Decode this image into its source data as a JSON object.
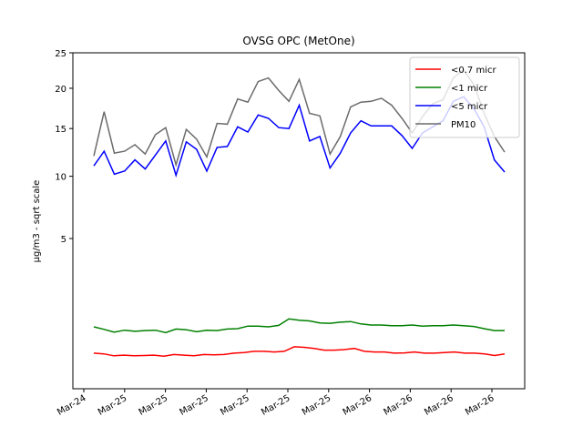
{
  "chart_data": {
    "type": "line",
    "title": "OVSG OPC (MetOne)",
    "ylabel": "µg/m3 - sqrt scale",
    "xlabel": "",
    "y_scale": "sqrt",
    "ylim": [
      0,
      25
    ],
    "y_ticks": [
      5,
      10,
      15,
      20,
      25
    ],
    "x_tick_labels": [
      "Mar-24",
      "Mar-25",
      "Mar-25",
      "Mar-25",
      "Mar-25",
      "Mar-25",
      "Mar-25",
      "Mar-26",
      "Mar-26",
      "Mar-26",
      "Mar-26"
    ],
    "legend_position": "top-right",
    "grid": false,
    "series": [
      {
        "name": "<0.7 micr",
        "color": "#ff0000",
        "values": [
          0.28,
          0.27,
          0.24,
          0.25,
          0.24,
          0.245,
          0.25,
          0.235,
          0.26,
          0.25,
          0.24,
          0.26,
          0.255,
          0.26,
          0.28,
          0.29,
          0.31,
          0.31,
          0.3,
          0.31,
          0.39,
          0.38,
          0.36,
          0.33,
          0.33,
          0.34,
          0.36,
          0.31,
          0.3,
          0.3,
          0.28,
          0.285,
          0.3,
          0.28,
          0.28,
          0.29,
          0.3,
          0.28,
          0.28,
          0.27,
          0.245,
          0.27
        ]
      },
      {
        "name": "<1 micr",
        "color": "#008000",
        "values": [
          0.85,
          0.78,
          0.71,
          0.76,
          0.73,
          0.75,
          0.76,
          0.7,
          0.79,
          0.77,
          0.72,
          0.76,
          0.75,
          0.79,
          0.8,
          0.87,
          0.87,
          0.85,
          0.89,
          1.08,
          1.04,
          1.02,
          0.96,
          0.95,
          0.98,
          1.0,
          0.93,
          0.9,
          0.9,
          0.88,
          0.88,
          0.9,
          0.87,
          0.88,
          0.88,
          0.9,
          0.88,
          0.86,
          0.8,
          0.75,
          0.75
        ]
      },
      {
        "name": "<5 micr",
        "color": "#0000ff",
        "values": [
          11.0,
          12.5,
          10.2,
          10.5,
          11.6,
          10.7,
          12.1,
          13.6,
          10.1,
          13.5,
          12.7,
          10.5,
          12.9,
          13.0,
          15.2,
          14.6,
          16.6,
          16.2,
          15.1,
          15.0,
          17.8,
          13.6,
          14.1,
          10.8,
          12.3,
          14.5,
          15.9,
          15.3,
          15.3,
          15.3,
          14.2,
          12.8,
          14.5,
          15.2,
          15.9,
          18.3,
          18.9,
          17.4,
          15.2,
          11.6,
          10.4
        ]
      },
      {
        "name": "PM10",
        "color": "#6b6b6b",
        "values": [
          12.0,
          17.0,
          12.3,
          12.5,
          13.2,
          12.2,
          14.3,
          15.1,
          11.1,
          14.9,
          13.8,
          11.9,
          15.6,
          15.5,
          18.6,
          18.2,
          20.9,
          21.4,
          19.7,
          18.3,
          21.2,
          16.8,
          16.5,
          12.2,
          14.1,
          17.6,
          18.2,
          18.3,
          18.7,
          17.8,
          16.2,
          14.5,
          16.4,
          18.0,
          18.5,
          21.4,
          22.5,
          20.5,
          16.8,
          14.1,
          12.4
        ]
      }
    ]
  }
}
